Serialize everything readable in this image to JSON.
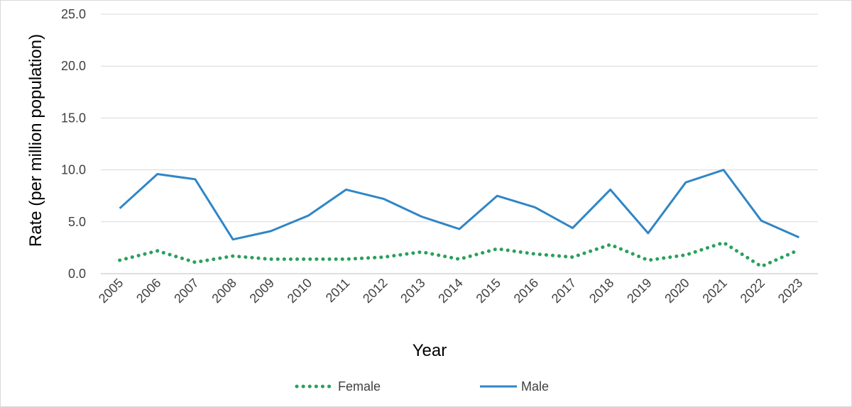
{
  "chart_data": {
    "type": "line",
    "categories": [
      "2005",
      "2006",
      "2007",
      "2008",
      "2009",
      "2010",
      "2011",
      "2012",
      "2013",
      "2014",
      "2015",
      "2016",
      "2017",
      "2018",
      "2019",
      "2020",
      "2021",
      "2022",
      "2023"
    ],
    "series": [
      {
        "name": "Female",
        "color": "#2aa05b",
        "style": "dotted",
        "values": [
          1.3,
          2.2,
          1.1,
          1.7,
          1.4,
          1.4,
          1.4,
          1.6,
          2.1,
          1.4,
          2.4,
          1.9,
          1.6,
          2.8,
          1.3,
          1.8,
          3.0,
          0.7,
          2.3
        ]
      },
      {
        "name": "Male",
        "color": "#2f86c6",
        "style": "solid",
        "values": [
          6.3,
          9.6,
          9.1,
          3.3,
          4.1,
          5.6,
          8.1,
          7.2,
          5.5,
          4.3,
          7.5,
          6.4,
          4.4,
          8.1,
          3.9,
          8.8,
          10.0,
          5.1,
          3.5
        ]
      }
    ],
    "yticks": [
      "0.0",
      "5.0",
      "10.0",
      "15.0",
      "20.0",
      "25.0"
    ],
    "ylim": [
      0,
      25
    ],
    "xlabel": "Year",
    "ylabel": "Rate (per million population)",
    "grid": true,
    "legend": "bottom"
  }
}
